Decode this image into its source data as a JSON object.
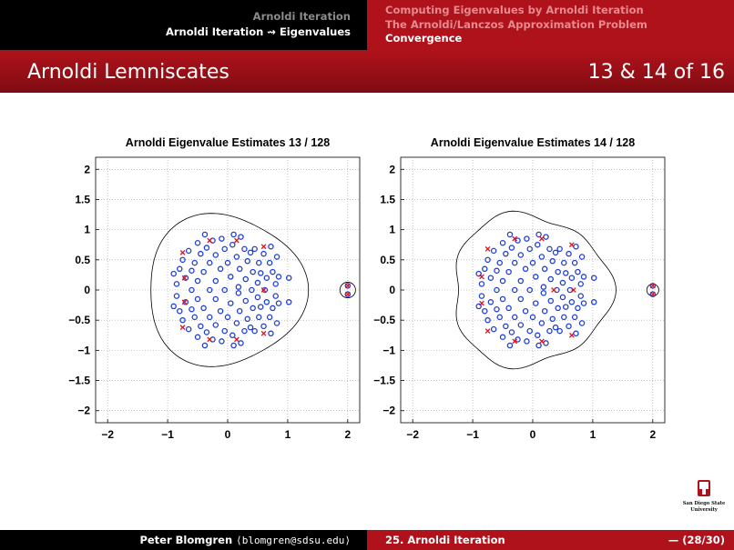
{
  "header": {
    "section_1": "Arnoldi Iteration",
    "section_2": "Arnoldi Iteration ⇝ Eigenvalues",
    "subsection_1": "Computing Eigenvalues by Arnoldi Iteration",
    "subsection_2": "The Arnoldi/Lanczos Approximation Problem",
    "subsection_3": "Convergence"
  },
  "frame": {
    "title": "Arnoldi Lemniscates",
    "counter": "13 & 14 of 16"
  },
  "footer": {
    "author_name": "Peter Blomgren",
    "author_email": "⟨blomgren@sdsu.edu⟩",
    "talk": "25. Arnoldi Iteration",
    "page": "— (28/30)"
  },
  "logo": {
    "line1": "San Diego State",
    "line2": "University"
  },
  "colors": {
    "dark": "#000000",
    "red": "#b0121b",
    "eig": "#1f3fd6",
    "ritz": "#e21020",
    "curve": "#000000"
  },
  "chart_data": [
    {
      "type": "scatter",
      "title": "Arnoldi Eigenvalue Estimates 13 / 128",
      "xlim": [
        -2.2,
        2.2
      ],
      "ylim": [
        -2.2,
        2.2
      ],
      "xticks": [
        "−2",
        "−1",
        "0",
        "1",
        "2"
      ],
      "yticks": [
        "2",
        "1.5",
        "1",
        "0.5",
        "0",
        "−0.5",
        "−1",
        "−1.5",
        "−2"
      ],
      "grid": true,
      "series": [
        {
          "marker": "circle",
          "color": "#1f3fd6",
          "points": [
            [
              -0.9,
              0.27
            ],
            [
              -0.9,
              -0.27
            ],
            [
              -0.85,
              0.1
            ],
            [
              -0.85,
              -0.1
            ],
            [
              -0.8,
              0.35
            ],
            [
              -0.8,
              -0.35
            ],
            [
              -0.75,
              0.5
            ],
            [
              -0.75,
              -0.5
            ],
            [
              -0.7,
              0.2
            ],
            [
              -0.7,
              -0.2
            ],
            [
              -0.65,
              0.65
            ],
            [
              -0.65,
              -0.65
            ],
            [
              -0.6,
              0.0
            ],
            [
              -0.6,
              0.32
            ],
            [
              -0.6,
              -0.32
            ],
            [
              -0.55,
              0.45
            ],
            [
              -0.55,
              -0.45
            ],
            [
              -0.5,
              0.78
            ],
            [
              -0.5,
              -0.78
            ],
            [
              -0.5,
              0.15
            ],
            [
              -0.5,
              -0.15
            ],
            [
              -0.45,
              0.6
            ],
            [
              -0.45,
              -0.6
            ],
            [
              -0.4,
              0.3
            ],
            [
              -0.4,
              -0.3
            ],
            [
              -0.38,
              0.92
            ],
            [
              -0.38,
              -0.92
            ],
            [
              -0.35,
              0.7
            ],
            [
              -0.35,
              -0.7
            ],
            [
              -0.3,
              0.0
            ],
            [
              -0.3,
              0.45
            ],
            [
              -0.3,
              -0.45
            ],
            [
              -0.25,
              0.82
            ],
            [
              -0.25,
              -0.82
            ],
            [
              -0.2,
              0.15
            ],
            [
              -0.2,
              -0.15
            ],
            [
              -0.2,
              0.58
            ],
            [
              -0.2,
              -0.58
            ],
            [
              -0.12,
              0.35
            ],
            [
              -0.12,
              -0.35
            ],
            [
              -0.1,
              0.85
            ],
            [
              -0.1,
              -0.85
            ],
            [
              -0.05,
              0.0
            ],
            [
              -0.05,
              0.68
            ],
            [
              -0.05,
              -0.68
            ],
            [
              0.0,
              0.45
            ],
            [
              0.0,
              -0.45
            ],
            [
              0.05,
              0.22
            ],
            [
              0.05,
              -0.22
            ],
            [
              0.08,
              0.75
            ],
            [
              0.08,
              -0.75
            ],
            [
              0.1,
              0.92
            ],
            [
              0.1,
              -0.92
            ],
            [
              0.15,
              0.55
            ],
            [
              0.15,
              -0.55
            ],
            [
              0.18,
              0.05
            ],
            [
              0.18,
              -0.05
            ],
            [
              0.2,
              0.35
            ],
            [
              0.2,
              -0.35
            ],
            [
              0.22,
              0.88
            ],
            [
              0.22,
              -0.88
            ],
            [
              0.28,
              0.68
            ],
            [
              0.28,
              -0.68
            ],
            [
              0.3,
              0.18
            ],
            [
              0.3,
              -0.18
            ],
            [
              0.33,
              0.48
            ],
            [
              0.33,
              -0.48
            ],
            [
              0.38,
              0.62
            ],
            [
              0.38,
              -0.62
            ],
            [
              0.4,
              0.0
            ],
            [
              0.42,
              0.3
            ],
            [
              0.42,
              -0.3
            ],
            [
              0.45,
              0.68
            ],
            [
              0.45,
              -0.68
            ],
            [
              0.5,
              0.12
            ],
            [
              0.5,
              -0.12
            ],
            [
              0.52,
              0.45
            ],
            [
              0.52,
              -0.45
            ],
            [
              0.55,
              0.28
            ],
            [
              0.55,
              -0.28
            ],
            [
              0.6,
              0.6
            ],
            [
              0.6,
              -0.6
            ],
            [
              0.62,
              0.0
            ],
            [
              0.65,
              0.2
            ],
            [
              0.65,
              -0.2
            ],
            [
              0.7,
              0.45
            ],
            [
              0.7,
              -0.45
            ],
            [
              0.72,
              0.72
            ],
            [
              0.72,
              -0.72
            ],
            [
              0.75,
              0.3
            ],
            [
              0.75,
              -0.3
            ],
            [
              0.8,
              0.1
            ],
            [
              0.8,
              -0.1
            ],
            [
              0.82,
              0.55
            ],
            [
              0.82,
              -0.55
            ],
            [
              0.85,
              0.22
            ],
            [
              0.85,
              -0.22
            ],
            [
              1.02,
              0.2
            ],
            [
              1.02,
              -0.2
            ],
            [
              2.0,
              0.07
            ],
            [
              2.0,
              -0.07
            ]
          ]
        },
        {
          "marker": "x",
          "color": "#e21020",
          "points": [
            [
              -0.75,
              0.62
            ],
            [
              -0.75,
              -0.62
            ],
            [
              -0.72,
              0.2
            ],
            [
              -0.72,
              -0.2
            ],
            [
              -0.3,
              0.82
            ],
            [
              -0.3,
              -0.82
            ],
            [
              0.15,
              0.82
            ],
            [
              0.15,
              -0.82
            ],
            [
              0.6,
              0.72
            ],
            [
              0.6,
              -0.72
            ],
            [
              0.6,
              0.0
            ],
            [
              2.0,
              0.07
            ],
            [
              2.0,
              -0.07
            ]
          ]
        }
      ]
    },
    {
      "type": "scatter",
      "title": "Arnoldi Eigenvalue Estimates 14 / 128",
      "xlim": [
        -2.2,
        2.2
      ],
      "ylim": [
        -2.2,
        2.2
      ],
      "xticks": [
        "−2",
        "−1",
        "0",
        "1",
        "2"
      ],
      "yticks": [
        "2",
        "1.5",
        "1",
        "0.5",
        "0",
        "−0.5",
        "−1",
        "−1.5",
        "−2"
      ],
      "grid": true,
      "series": [
        {
          "marker": "circle",
          "color": "#1f3fd6",
          "points": [
            [
              -0.9,
              0.27
            ],
            [
              -0.9,
              -0.27
            ],
            [
              -0.85,
              0.1
            ],
            [
              -0.85,
              -0.1
            ],
            [
              -0.8,
              0.35
            ],
            [
              -0.8,
              -0.35
            ],
            [
              -0.75,
              0.5
            ],
            [
              -0.75,
              -0.5
            ],
            [
              -0.7,
              0.2
            ],
            [
              -0.7,
              -0.2
            ],
            [
              -0.65,
              0.65
            ],
            [
              -0.65,
              -0.65
            ],
            [
              -0.6,
              0.0
            ],
            [
              -0.6,
              0.32
            ],
            [
              -0.6,
              -0.32
            ],
            [
              -0.55,
              0.45
            ],
            [
              -0.55,
              -0.45
            ],
            [
              -0.5,
              0.78
            ],
            [
              -0.5,
              -0.78
            ],
            [
              -0.5,
              0.15
            ],
            [
              -0.5,
              -0.15
            ],
            [
              -0.45,
              0.6
            ],
            [
              -0.45,
              -0.6
            ],
            [
              -0.4,
              0.3
            ],
            [
              -0.4,
              -0.3
            ],
            [
              -0.38,
              0.92
            ],
            [
              -0.38,
              -0.92
            ],
            [
              -0.35,
              0.7
            ],
            [
              -0.35,
              -0.7
            ],
            [
              -0.3,
              0.0
            ],
            [
              -0.3,
              0.45
            ],
            [
              -0.3,
              -0.45
            ],
            [
              -0.25,
              0.82
            ],
            [
              -0.25,
              -0.82
            ],
            [
              -0.2,
              0.15
            ],
            [
              -0.2,
              -0.15
            ],
            [
              -0.2,
              0.58
            ],
            [
              -0.2,
              -0.58
            ],
            [
              -0.12,
              0.35
            ],
            [
              -0.12,
              -0.35
            ],
            [
              -0.1,
              0.85
            ],
            [
              -0.1,
              -0.85
            ],
            [
              -0.05,
              0.0
            ],
            [
              -0.05,
              0.68
            ],
            [
              -0.05,
              -0.68
            ],
            [
              0.0,
              0.45
            ],
            [
              0.0,
              -0.45
            ],
            [
              0.05,
              0.22
            ],
            [
              0.05,
              -0.22
            ],
            [
              0.08,
              0.75
            ],
            [
              0.08,
              -0.75
            ],
            [
              0.1,
              0.92
            ],
            [
              0.1,
              -0.92
            ],
            [
              0.15,
              0.55
            ],
            [
              0.15,
              -0.55
            ],
            [
              0.18,
              0.05
            ],
            [
              0.18,
              -0.05
            ],
            [
              0.2,
              0.35
            ],
            [
              0.2,
              -0.35
            ],
            [
              0.22,
              0.88
            ],
            [
              0.22,
              -0.88
            ],
            [
              0.28,
              0.68
            ],
            [
              0.28,
              -0.68
            ],
            [
              0.3,
              0.18
            ],
            [
              0.3,
              -0.18
            ],
            [
              0.33,
              0.48
            ],
            [
              0.33,
              -0.48
            ],
            [
              0.38,
              0.62
            ],
            [
              0.38,
              -0.62
            ],
            [
              0.4,
              0.0
            ],
            [
              0.42,
              0.3
            ],
            [
              0.42,
              -0.3
            ],
            [
              0.45,
              0.68
            ],
            [
              0.45,
              -0.68
            ],
            [
              0.5,
              0.12
            ],
            [
              0.5,
              -0.12
            ],
            [
              0.52,
              0.45
            ],
            [
              0.52,
              -0.45
            ],
            [
              0.55,
              0.28
            ],
            [
              0.55,
              -0.28
            ],
            [
              0.6,
              0.6
            ],
            [
              0.6,
              -0.6
            ],
            [
              0.62,
              0.0
            ],
            [
              0.65,
              0.2
            ],
            [
              0.65,
              -0.2
            ],
            [
              0.7,
              0.45
            ],
            [
              0.7,
              -0.45
            ],
            [
              0.72,
              0.72
            ],
            [
              0.72,
              -0.72
            ],
            [
              0.75,
              0.3
            ],
            [
              0.75,
              -0.3
            ],
            [
              0.8,
              0.1
            ],
            [
              0.8,
              -0.1
            ],
            [
              0.82,
              0.55
            ],
            [
              0.82,
              -0.55
            ],
            [
              0.85,
              0.22
            ],
            [
              0.85,
              -0.22
            ],
            [
              1.02,
              0.2
            ],
            [
              1.02,
              -0.2
            ],
            [
              2.0,
              0.07
            ],
            [
              2.0,
              -0.07
            ]
          ]
        },
        {
          "marker": "x",
          "color": "#e21020",
          "points": [
            [
              -0.75,
              0.68
            ],
            [
              -0.75,
              -0.68
            ],
            [
              -0.85,
              0.22
            ],
            [
              -0.85,
              -0.22
            ],
            [
              -0.3,
              0.85
            ],
            [
              -0.3,
              -0.85
            ],
            [
              0.15,
              0.85
            ],
            [
              0.15,
              -0.85
            ],
            [
              0.65,
              0.75
            ],
            [
              0.65,
              -0.75
            ],
            [
              0.35,
              0.0
            ],
            [
              0.68,
              0.0
            ],
            [
              2.0,
              0.07
            ],
            [
              2.0,
              -0.07
            ]
          ]
        }
      ]
    }
  ]
}
